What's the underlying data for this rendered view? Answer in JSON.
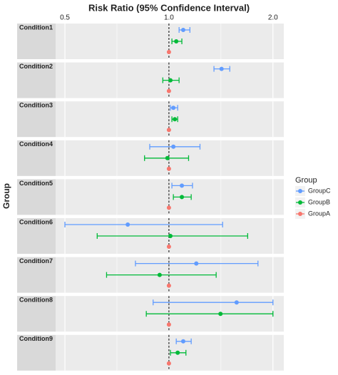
{
  "chart_data": {
    "type": "forest",
    "title": "Risk Ratio (95% Confidence Interval)",
    "y_label": "Group",
    "legend_title": "Group",
    "categories": [
      "Condition1",
      "Condition2",
      "Condition3",
      "Condition4",
      "Condition5",
      "Condition6",
      "Condition7",
      "Condition8",
      "Condition9"
    ],
    "series": [
      {
        "name": "GroupC",
        "color": "#619CFF",
        "values": [
          1.1,
          1.42,
          1.03,
          1.03,
          1.09,
          0.76,
          1.2,
          1.57,
          1.1
        ],
        "lower": [
          1.07,
          1.35,
          1.01,
          0.88,
          1.02,
          0.5,
          0.8,
          0.9,
          1.05
        ],
        "upper": [
          1.15,
          1.5,
          1.06,
          1.23,
          1.17,
          1.43,
          1.81,
          2.0,
          1.16
        ]
      },
      {
        "name": "GroupB",
        "color": "#00BA38",
        "values": [
          1.05,
          1.01,
          1.04,
          0.99,
          1.09,
          1.01,
          0.94,
          1.41,
          1.06
        ],
        "lower": [
          1.02,
          0.96,
          1.02,
          0.85,
          1.03,
          0.62,
          0.66,
          0.86,
          1.01
        ],
        "upper": [
          1.09,
          1.07,
          1.06,
          1.14,
          1.16,
          1.69,
          1.37,
          2.0,
          1.12
        ]
      },
      {
        "name": "GroupA",
        "color": "#F8766D",
        "values": [
          1.0,
          1.0,
          1.0,
          1.0,
          1.0,
          1.0,
          1.0,
          1.0,
          1.0
        ]
      }
    ],
    "xlim": [
      0.47,
      2.15
    ],
    "xticks": [
      0.5,
      {
        "value": 1,
        "label": "1.0"
      },
      {
        "value": 2,
        "label": "2.0"
      }
    ],
    "log_x": true,
    "reference_line": 1,
    "grid": true,
    "legend_position": "right"
  }
}
